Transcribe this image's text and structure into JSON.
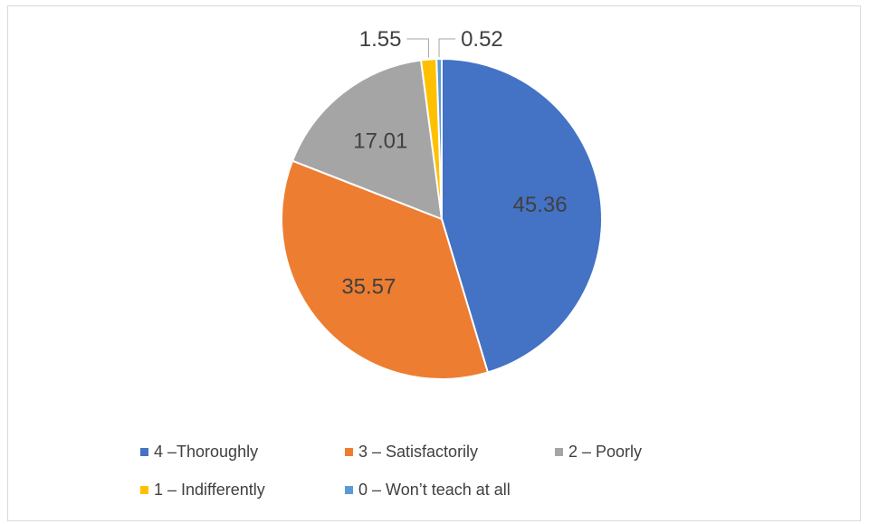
{
  "chart_data": {
    "type": "pie",
    "title": "",
    "categories": [
      "4 –Thoroughly",
      "3 – Satisfactorily",
      "2 – Poorly",
      "1 – Indifferently",
      "0 – Won’t teach at all"
    ],
    "values": [
      45.36,
      35.57,
      17.01,
      1.55,
      0.52
    ],
    "data_labels": [
      "45.36",
      "35.57",
      "17.01",
      "1.55",
      "0.52"
    ],
    "colors": [
      "#4472c4",
      "#ed7d31",
      "#a5a5a5",
      "#ffc000",
      "#5b9bd5"
    ],
    "legend_position": "bottom"
  }
}
